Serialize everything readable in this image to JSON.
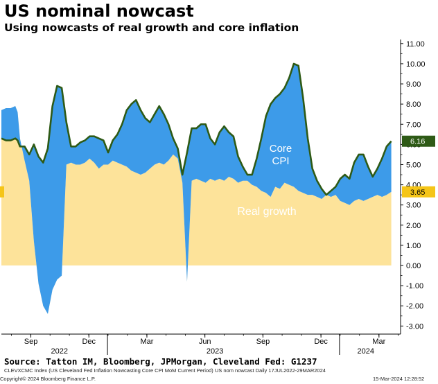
{
  "title": "US nominal nowcast",
  "subtitle": "Using nowcasts of real growth and core inflation",
  "source": "Source: Tatton IM, Bloomberg, JPMorgan, Cleveland Fed: G1237",
  "footer": {
    "index_desc": "CLEVXCMC Index (US Cleveland Fed Inflation Nowcasting Core CPI MoM Current Period) US nom nowcast  Daily 17JUL2022-29MAR2024",
    "copyright": "Copyright© 2024 Bloomberg Finance L.P.",
    "timestamp": "15-Mar-2024 12:28:52"
  },
  "colors": {
    "real_growth": "#FDE39A",
    "core_cpi": "#3D9BE9",
    "nominal_line": "#2E5A16",
    "nominal_tag": "#2E5A16",
    "growth_tag": "#F5C518"
  },
  "chart_data": {
    "type": "area",
    "y_axis": {
      "min": -3.4,
      "max": 11.2,
      "ticks": [
        "11.00",
        "10.00",
        "9.00",
        "8.00",
        "7.00",
        "6.00",
        "5.00",
        "4.00",
        "3.00",
        "2.00",
        "1.00",
        "0.00",
        "-1.00",
        "-2.00",
        "-3.00"
      ],
      "position": "right"
    },
    "x_axis": {
      "months": [
        "Sep",
        "Dec",
        "Mar",
        "Jun",
        "Sep",
        "Dec",
        "Mar"
      ],
      "month_values": [
        2022.667,
        2022.917,
        2023.167,
        2023.417,
        2023.667,
        2023.917,
        2024.167
      ],
      "years": [
        "2022",
        "2023",
        "2024"
      ],
      "year_values": [
        2022.79,
        2023.46,
        2024.11
      ],
      "range": [
        2022.54,
        2024.26
      ]
    },
    "annotations": {
      "core_cpi": "Core\nCPI",
      "real_growth": "Real growth"
    },
    "last_values": {
      "nominal": "6.16",
      "real_growth": "3.65"
    },
    "x": [
      2022.54,
      2022.56,
      2022.58,
      2022.6,
      2022.61,
      2022.62,
      2022.64,
      2022.66,
      2022.68,
      2022.7,
      2022.72,
      2022.74,
      2022.76,
      2022.78,
      2022.8,
      2022.82,
      2022.84,
      2022.86,
      2022.88,
      2022.9,
      2022.92,
      2022.94,
      2022.96,
      2022.98,
      2023.0,
      2023.02,
      2023.04,
      2023.06,
      2023.08,
      2023.1,
      2023.12,
      2023.14,
      2023.16,
      2023.18,
      2023.2,
      2023.22,
      2023.24,
      2023.26,
      2023.28,
      2023.3,
      2023.32,
      2023.34,
      2023.36,
      2023.38,
      2023.4,
      2023.42,
      2023.44,
      2023.46,
      2023.48,
      2023.5,
      2023.52,
      2023.54,
      2023.56,
      2023.58,
      2023.6,
      2023.62,
      2023.64,
      2023.66,
      2023.68,
      2023.7,
      2023.72,
      2023.74,
      2023.76,
      2023.78,
      2023.8,
      2023.82,
      2023.84,
      2023.86,
      2023.88,
      2023.9,
      2023.92,
      2023.94,
      2023.96,
      2023.98,
      2024.0,
      2024.02,
      2024.04,
      2024.06,
      2024.08,
      2024.1,
      2024.12,
      2024.14,
      2024.16,
      2024.18,
      2024.2,
      2024.22
    ],
    "series": [
      {
        "name": "Real growth",
        "values": [
          7.7,
          7.8,
          7.8,
          7.9,
          7.6,
          6.3,
          5.2,
          4.2,
          1.2,
          -0.9,
          -2.0,
          -2.4,
          -1.2,
          -0.7,
          -0.5,
          5.0,
          5.1,
          5.0,
          5.0,
          5.1,
          5.3,
          5.1,
          4.8,
          5.0,
          5.0,
          5.2,
          5.1,
          5.0,
          4.9,
          4.7,
          4.6,
          4.5,
          4.6,
          4.8,
          5.0,
          5.1,
          5.0,
          5.2,
          5.5,
          5.3,
          4.1,
          -0.8,
          4.2,
          4.3,
          4.2,
          4.1,
          4.3,
          4.2,
          4.3,
          4.2,
          4.4,
          4.3,
          4.1,
          4.2,
          4.2,
          4.0,
          3.9,
          3.7,
          3.6,
          3.4,
          3.9,
          3.8,
          4.1,
          4.0,
          3.9,
          3.7,
          3.6,
          3.5,
          3.5,
          3.4,
          3.3,
          3.5,
          3.4,
          3.5,
          3.2,
          3.1,
          3.0,
          3.2,
          3.3,
          3.2,
          3.3,
          3.4,
          3.5,
          3.4,
          3.5,
          3.65
        ]
      },
      {
        "name": "Core CPI",
        "values": [
          -1.4,
          -1.6,
          -1.6,
          -1.6,
          -1.4,
          -0.4,
          0.7,
          1.3,
          4.8,
          6.3,
          7.1,
          8.2,
          9.1,
          9.6,
          9.3,
          2.1,
          0.8,
          0.9,
          1.1,
          1.1,
          1.1,
          1.3,
          1.5,
          1.2,
          0.6,
          1.0,
          1.4,
          2.0,
          2.8,
          3.3,
          3.6,
          3.2,
          2.7,
          2.3,
          2.5,
          2.8,
          2.5,
          1.8,
          0.8,
          0.5,
          0.4,
          6.4,
          2.6,
          2.5,
          2.8,
          2.9,
          2.0,
          1.8,
          2.3,
          2.7,
          2.2,
          2.1,
          1.3,
          0.7,
          0.3,
          0.5,
          1.4,
          2.6,
          3.8,
          4.6,
          4.4,
          4.7,
          4.7,
          5.3,
          6.1,
          6.2,
          4.7,
          2.8,
          1.3,
          0.8,
          0.5,
          0.0,
          0.3,
          0.4,
          1.1,
          1.4,
          1.3,
          1.9,
          2.2,
          2.3,
          1.6,
          1.0,
          1.3,
          1.9,
          2.4,
          2.51
        ]
      },
      {
        "name": "Nominal nowcast",
        "values": [
          6.3,
          6.2,
          6.2,
          6.3,
          6.2,
          5.9,
          5.9,
          5.5,
          6.0,
          5.4,
          5.1,
          5.8,
          7.9,
          8.9,
          8.8,
          7.1,
          5.9,
          5.9,
          6.1,
          6.2,
          6.4,
          6.4,
          6.3,
          6.2,
          5.6,
          6.2,
          6.5,
          7.0,
          7.7,
          8.0,
          8.2,
          7.7,
          7.3,
          7.1,
          7.5,
          7.9,
          7.5,
          7.0,
          6.3,
          5.8,
          4.5,
          5.6,
          6.8,
          6.8,
          7.0,
          7.0,
          6.3,
          6.0,
          6.6,
          6.9,
          6.6,
          6.4,
          5.4,
          4.9,
          4.5,
          4.5,
          5.3,
          6.3,
          7.4,
          8.0,
          8.3,
          8.5,
          8.8,
          9.3,
          10.0,
          9.9,
          8.3,
          6.3,
          4.8,
          4.2,
          3.8,
          3.5,
          3.7,
          3.9,
          4.3,
          4.5,
          4.3,
          5.1,
          5.5,
          5.5,
          4.9,
          4.4,
          4.8,
          5.3,
          5.9,
          6.16
        ]
      }
    ]
  }
}
